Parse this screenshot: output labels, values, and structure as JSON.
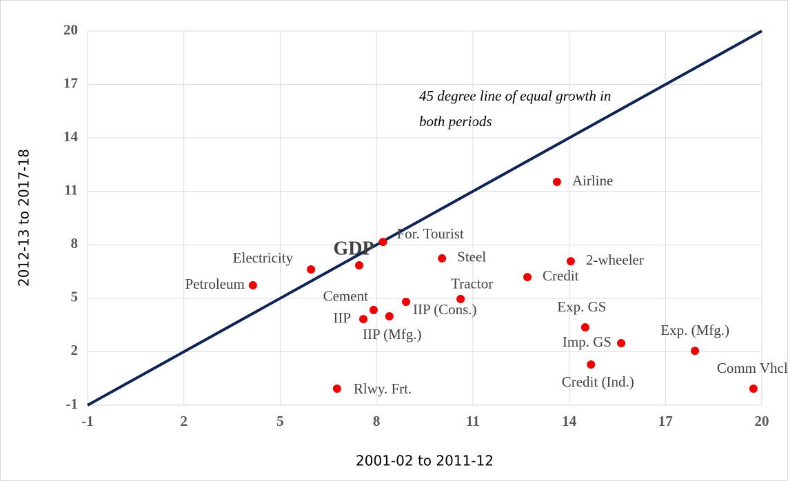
{
  "chart_data": {
    "type": "scatter",
    "x_label": "2001-02 to 2011-12",
    "y_label": "2012-13 to 2017-18",
    "annotation": [
      "45 degree line of equal growth in",
      "both periods"
    ],
    "reference_line": {
      "x": [
        -1,
        20
      ],
      "y": [
        -1,
        20
      ],
      "color": "#0d2355"
    },
    "color": "#ee0000",
    "labels": [
      "Petroleum",
      "Electricity",
      "GDP",
      "For. Tourist",
      "Steel",
      "Airline",
      "2-wheeler",
      "Credit",
      "Tractor",
      "Cement",
      "IIP (Cons.)",
      "IIP",
      "IIP (Mfg.)",
      "Rlwy. Frt.",
      "Exp. GS",
      "Imp. GS",
      "Credit (Ind.)",
      "Exp. (Mfg.)",
      "Comm Vhcl."
    ],
    "x": [
      4.15,
      5.96,
      7.46,
      8.2,
      10.04,
      13.62,
      14.05,
      12.7,
      10.62,
      7.91,
      8.92,
      7.59,
      8.4,
      6.77,
      14.5,
      15.62,
      14.68,
      17.92,
      19.74
    ],
    "y": [
      5.73,
      6.62,
      6.85,
      8.16,
      7.24,
      11.53,
      7.08,
      6.19,
      4.96,
      4.34,
      4.8,
      3.83,
      3.99,
      -0.07,
      3.37,
      2.48,
      1.28,
      2.05,
      -0.07
    ],
    "xlim": [
      -1,
      20
    ],
    "ylim": [
      -1,
      20
    ],
    "xticks": [
      -1,
      2,
      5,
      8,
      11,
      14,
      17,
      20
    ],
    "yticks": [
      -1,
      2,
      5,
      8,
      11,
      14,
      17,
      20
    ],
    "grid": true
  }
}
